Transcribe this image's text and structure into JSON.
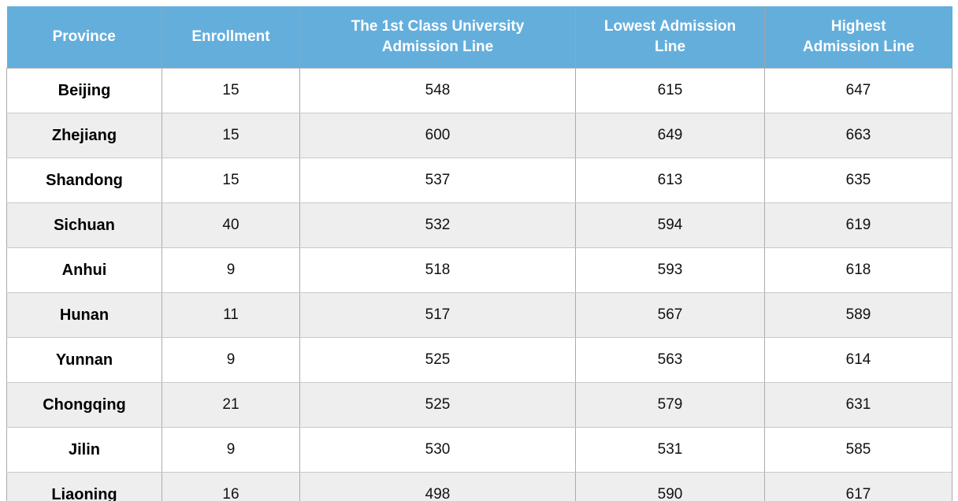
{
  "table": {
    "columns": [
      {
        "key": "province",
        "label": "Province"
      },
      {
        "key": "enrollment",
        "label": "Enrollment"
      },
      {
        "key": "first_class_line",
        "label": "The 1st Class University\nAdmission Line"
      },
      {
        "key": "lowest_line",
        "label": "Lowest Admission\nLine"
      },
      {
        "key": "highest_line",
        "label": "Highest\nAdmission Line"
      }
    ],
    "rows": [
      {
        "province": "Beijing",
        "enrollment": "15",
        "first_class_line": "548",
        "lowest_line": "615",
        "highest_line": "647"
      },
      {
        "province": "Zhejiang",
        "enrollment": "15",
        "first_class_line": "600",
        "lowest_line": "649",
        "highest_line": "663"
      },
      {
        "province": "Shandong",
        "enrollment": "15",
        "first_class_line": "537",
        "lowest_line": "613",
        "highest_line": "635"
      },
      {
        "province": "Sichuan",
        "enrollment": "40",
        "first_class_line": "532",
        "lowest_line": "594",
        "highest_line": "619"
      },
      {
        "province": "Anhui",
        "enrollment": "9",
        "first_class_line": "518",
        "lowest_line": "593",
        "highest_line": "618"
      },
      {
        "province": "Hunan",
        "enrollment": "11",
        "first_class_line": "517",
        "lowest_line": "567",
        "highest_line": "589"
      },
      {
        "province": "Yunnan",
        "enrollment": "9",
        "first_class_line": "525",
        "lowest_line": "563",
        "highest_line": "614"
      },
      {
        "province": "Chongqing",
        "enrollment": "21",
        "first_class_line": "525",
        "lowest_line": "579",
        "highest_line": "631"
      },
      {
        "province": "Jilin",
        "enrollment": "9",
        "first_class_line": "530",
        "lowest_line": "531",
        "highest_line": "585"
      },
      {
        "province": "Liaoning",
        "enrollment": "16",
        "first_class_line": "498",
        "lowest_line": "590",
        "highest_line": "617"
      }
    ]
  },
  "chart_data": {
    "type": "table",
    "columns": [
      "Province",
      "Enrollment",
      "The 1st Class University Admission Line",
      "Lowest Admission Line",
      "Highest Admission Line"
    ],
    "rows": [
      [
        "Beijing",
        15,
        548,
        615,
        647
      ],
      [
        "Zhejiang",
        15,
        600,
        649,
        663
      ],
      [
        "Shandong",
        15,
        537,
        613,
        635
      ],
      [
        "Sichuan",
        40,
        532,
        594,
        619
      ],
      [
        "Anhui",
        9,
        518,
        593,
        618
      ],
      [
        "Hunan",
        11,
        517,
        567,
        589
      ],
      [
        "Yunnan",
        9,
        525,
        563,
        614
      ],
      [
        "Chongqing",
        21,
        525,
        579,
        631
      ],
      [
        "Jilin",
        9,
        530,
        531,
        585
      ],
      [
        "Liaoning",
        16,
        498,
        590,
        617
      ]
    ]
  },
  "colors": {
    "header_background": "#64AEDC",
    "header_text": "#FFFFFF",
    "row_background": "#FFFFFF",
    "row_alt_background": "#EEEEEE",
    "body_text": "#111111",
    "vertical_border": "#ABABAB",
    "horizontal_border": "#C9C9C9"
  }
}
